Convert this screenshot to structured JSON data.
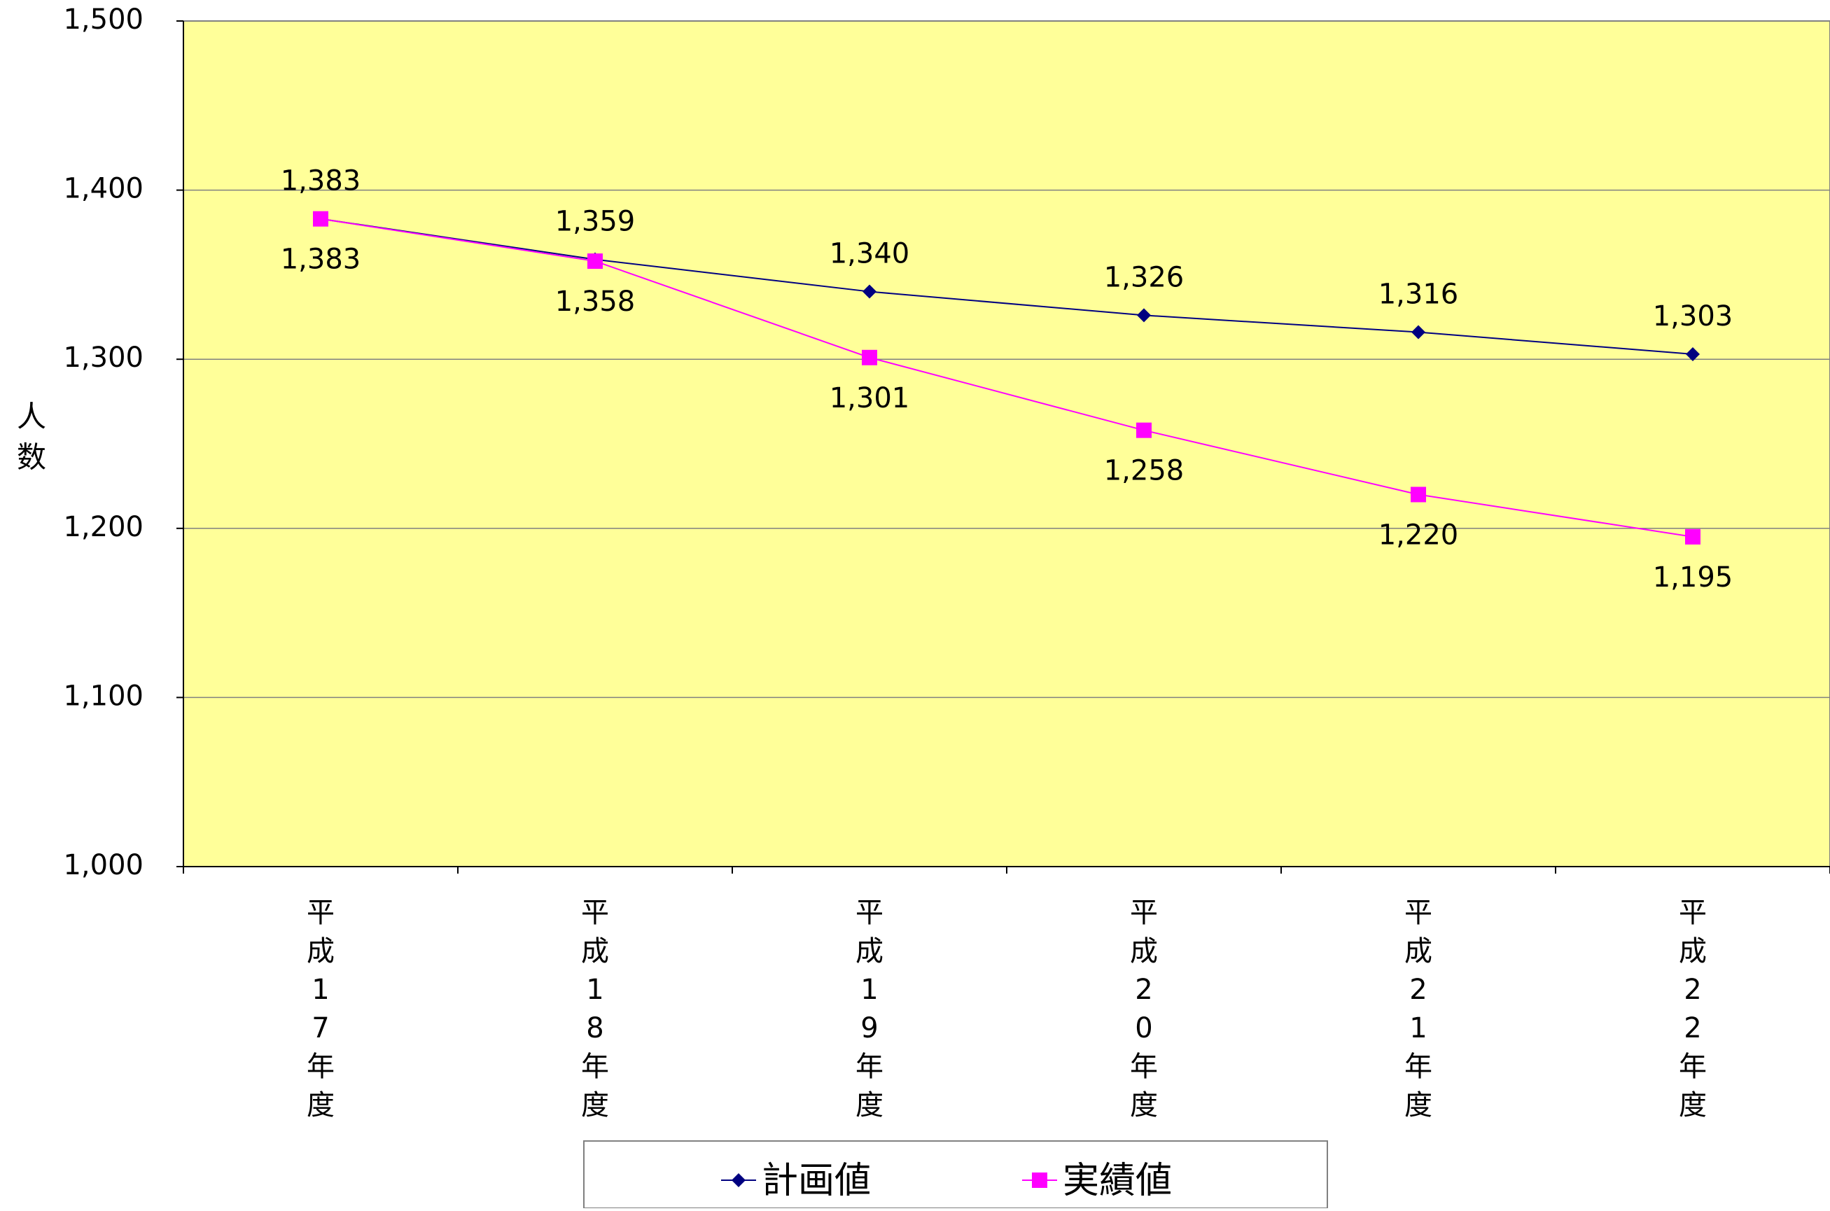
{
  "chart_data": {
    "type": "line",
    "categories": [
      [
        "平",
        "成",
        "1",
        "7",
        "年",
        "度"
      ],
      [
        "平",
        "成",
        "1",
        "8",
        "年",
        "度"
      ],
      [
        "平",
        "成",
        "1",
        "9",
        "年",
        "度"
      ],
      [
        "平",
        "成",
        "2",
        "0",
        "年",
        "度"
      ],
      [
        "平",
        "成",
        "2",
        "1",
        "年",
        "度"
      ],
      [
        "平",
        "成",
        "2",
        "2",
        "年",
        "度"
      ]
    ],
    "series": [
      {
        "name": "計画値",
        "values": [
          1383,
          1359,
          1340,
          1326,
          1316,
          1303
        ],
        "labels": [
          "1,383",
          "1,359",
          "1,340",
          "1,326",
          "1,316",
          "1,303"
        ],
        "color": "#000080",
        "marker": "diamond",
        "label_position": "above"
      },
      {
        "name": "実績値",
        "values": [
          1383,
          1358,
          1301,
          1258,
          1220,
          1195
        ],
        "labels": [
          "1,383",
          "1,358",
          "1,301",
          "1,258",
          "1,220",
          "1,195"
        ],
        "color": "#FF00FF",
        "marker": "square",
        "label_position": "below"
      }
    ],
    "ylabel": [
      "人",
      "数"
    ],
    "ylim": [
      1000,
      1500
    ],
    "yticks": [
      1000,
      1100,
      1200,
      1300,
      1400,
      1500
    ],
    "ytick_labels": [
      "1,000",
      "1,100",
      "1,200",
      "1,300",
      "1,400",
      "1,500"
    ],
    "grid": true,
    "legend_position": "bottom",
    "plot_background": "#FFFF99",
    "gridline_color": "#808080"
  }
}
